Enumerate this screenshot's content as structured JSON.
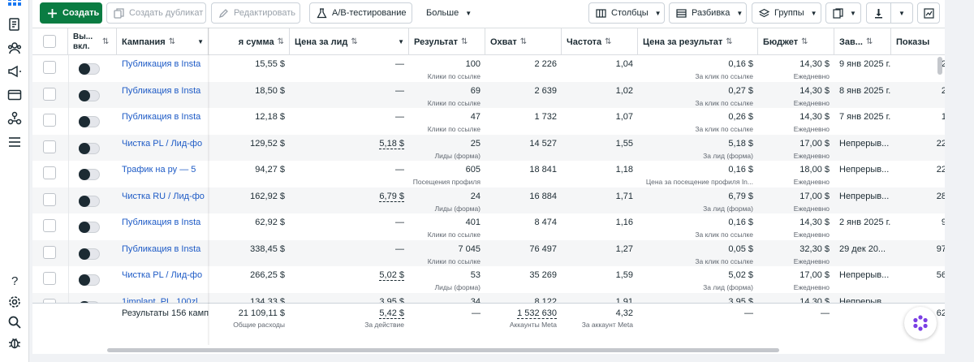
{
  "toolbar": {
    "create": "Создать",
    "duplicate": "Создать дубликат",
    "edit": "Редактировать",
    "ab_test": "A/B-тестирование",
    "more": "Больше",
    "columns": "Столбцы",
    "breakdown": "Разбивка",
    "groups": "Группы"
  },
  "columns": {
    "onoff": "Вы... вкл.",
    "campaign": "Кампания",
    "spent": "я сумма",
    "cpl": "Цена за лид",
    "result": "Результат",
    "reach": "Охват",
    "freq": "Частота",
    "cpr": "Цена за результат",
    "budget": "Бюджет",
    "ends": "Зав...",
    "impr": "Показы"
  },
  "rows": [
    {
      "name": "Публикация в Insta",
      "spent": "15,55 $",
      "cpl": "—",
      "result": "100",
      "result_type": "Клики по ссылке",
      "reach": "2 226",
      "freq": "1,04",
      "cpr": "0,16 $",
      "cpr_type": "За клик по ссылке",
      "budget": "14,30 $",
      "budget_type": "Ежедневно",
      "ends": "9 янв 2025 г.",
      "impr": "2"
    },
    {
      "name": "Публикация в Insta",
      "spent": "18,50 $",
      "cpl": "—",
      "result": "69",
      "result_type": "Клики по ссылке",
      "reach": "2 639",
      "freq": "1,02",
      "cpr": "0,27 $",
      "cpr_type": "За клик по ссылке",
      "budget": "14,30 $",
      "budget_type": "Ежедневно",
      "ends": "8 янв 2025 г.",
      "impr": "2"
    },
    {
      "name": "Публикация в Insta",
      "spent": "12,18 $",
      "cpl": "—",
      "result": "47",
      "result_type": "Клики по ссылке",
      "reach": "1 732",
      "freq": "1,07",
      "cpr": "0,26 $",
      "cpr_type": "За клик по ссылке",
      "budget": "14,30 $",
      "budget_type": "Ежедневно",
      "ends": "7 янв 2025 г.",
      "impr": "1"
    },
    {
      "name": "Чистка PL / Лид-фо",
      "spent": "129,52 $",
      "cpl": "5,18 $",
      "result": "25",
      "result_type": "Лиды (форма)",
      "reach": "14 527",
      "freq": "1,55",
      "cpr": "5,18 $",
      "cpr_type": "За лид (форма)",
      "budget": "17,00 $",
      "budget_type": "Ежедневно",
      "ends": "Непрерыв...",
      "impr": "22"
    },
    {
      "name": "Трафик на ру — 5",
      "spent": "94,27 $",
      "cpl": "—",
      "result": "605",
      "result_type": "Посещения профиля",
      "reach": "18 841",
      "freq": "1,18",
      "cpr": "0,16 $",
      "cpr_type": "Цена за посещение профиля In...",
      "budget": "18,00 $",
      "budget_type": "Ежедневно",
      "ends": "Непрерыв...",
      "impr": "22"
    },
    {
      "name": "Чистка RU / Лид-фо",
      "spent": "162,92 $",
      "cpl": "6,79 $",
      "result": "24",
      "result_type": "Лиды (форма)",
      "reach": "16 884",
      "freq": "1,71",
      "cpr": "6,79 $",
      "cpr_type": "За лид (форма)",
      "budget": "17,00 $",
      "budget_type": "Ежедневно",
      "ends": "Непрерыв...",
      "impr": "28"
    },
    {
      "name": "Публикация в Insta",
      "spent": "62,92 $",
      "cpl": "—",
      "result": "401",
      "result_type": "Клики по ссылке",
      "reach": "8 474",
      "freq": "1,16",
      "cpr": "0,16 $",
      "cpr_type": "За клик по ссылке",
      "budget": "14,30 $",
      "budget_type": "Ежедневно",
      "ends": "2 янв 2025 г.",
      "impr": "9"
    },
    {
      "name": "Публикация в Insta",
      "spent": "338,45 $",
      "cpl": "—",
      "result": "7 045",
      "result_type": "Клики по ссылке",
      "reach": "76 497",
      "freq": "1,27",
      "cpr": "0,05 $",
      "cpr_type": "За клик по ссылке",
      "budget": "32,30 $",
      "budget_type": "Ежедневно",
      "ends": "29 дек 20...",
      "impr": "97"
    },
    {
      "name": "Чистка PL / Лид-фо",
      "spent": "266,25 $",
      "cpl": "5,02 $",
      "result": "53",
      "result_type": "Лиды (форма)",
      "reach": "35 269",
      "freq": "1,59",
      "cpr": "5,02 $",
      "cpr_type": "За лид (форма)",
      "budget": "17,00 $",
      "budget_type": "Ежедневно",
      "ends": "Непрерыв...",
      "impr": "56"
    },
    {
      "name": "1implant_PL_100zl",
      "spent": "134,33 $",
      "cpl": "3,95 $",
      "result": "34",
      "result_type": "",
      "reach": "8 122",
      "freq": "1,91",
      "cpr": "3,95 $",
      "cpr_type": "",
      "budget": "14,30 $",
      "budget_type": "",
      "ends": "Непрерыв...",
      "impr": ""
    }
  ],
  "totals": {
    "label": "Результаты 156 кампа",
    "spent": "21 109,11 $",
    "spent_sub": "Общие расходы",
    "cpl": "5,42 $",
    "cpl_sub": "За действие",
    "result": "—",
    "reach": "1 532 630",
    "reach_sub": "Аккаунты Meta",
    "freq": "4,32",
    "freq_sub": "За аккаунт Meta",
    "cpr": "—",
    "budget": "—",
    "impr": "62"
  }
}
